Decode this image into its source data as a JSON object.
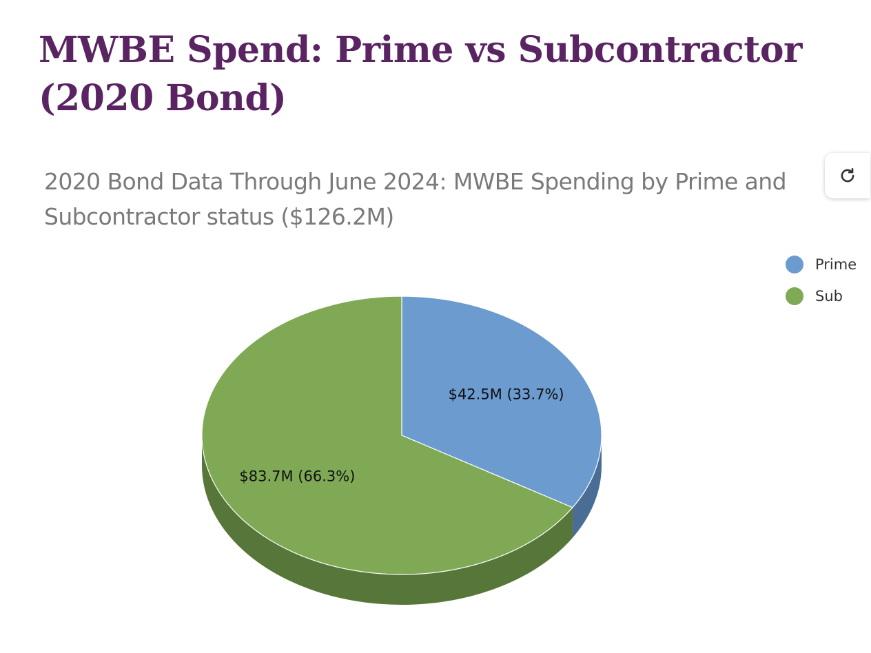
{
  "page": {
    "title": "MWBE Spend: Prime vs Subcontractor (2020 Bond)",
    "refresh_icon": "refresh-icon"
  },
  "chart_data": {
    "type": "pie",
    "title": "2020 Bond Data Through June 2024: MWBE Spending by Prime and Subcontractor status ($126.2M)",
    "title_lines": [
      "2020 Bond Data Through June 2024: MWBE Spending by Prime and",
      "Subcontractor status ($126.2M)"
    ],
    "categories": [
      "Prime",
      "Sub"
    ],
    "values": [
      42.5,
      83.7
    ],
    "percentages": [
      33.7,
      66.3
    ],
    "data_labels": [
      "$42.5M (33.7%)",
      "$83.7M (66.3%)"
    ],
    "colors": [
      "#6b9bcf",
      "#7fa955"
    ],
    "side_colors": [
      "#4a6d96",
      "#57773a"
    ],
    "legend_position": "top-right",
    "style": "3d"
  }
}
